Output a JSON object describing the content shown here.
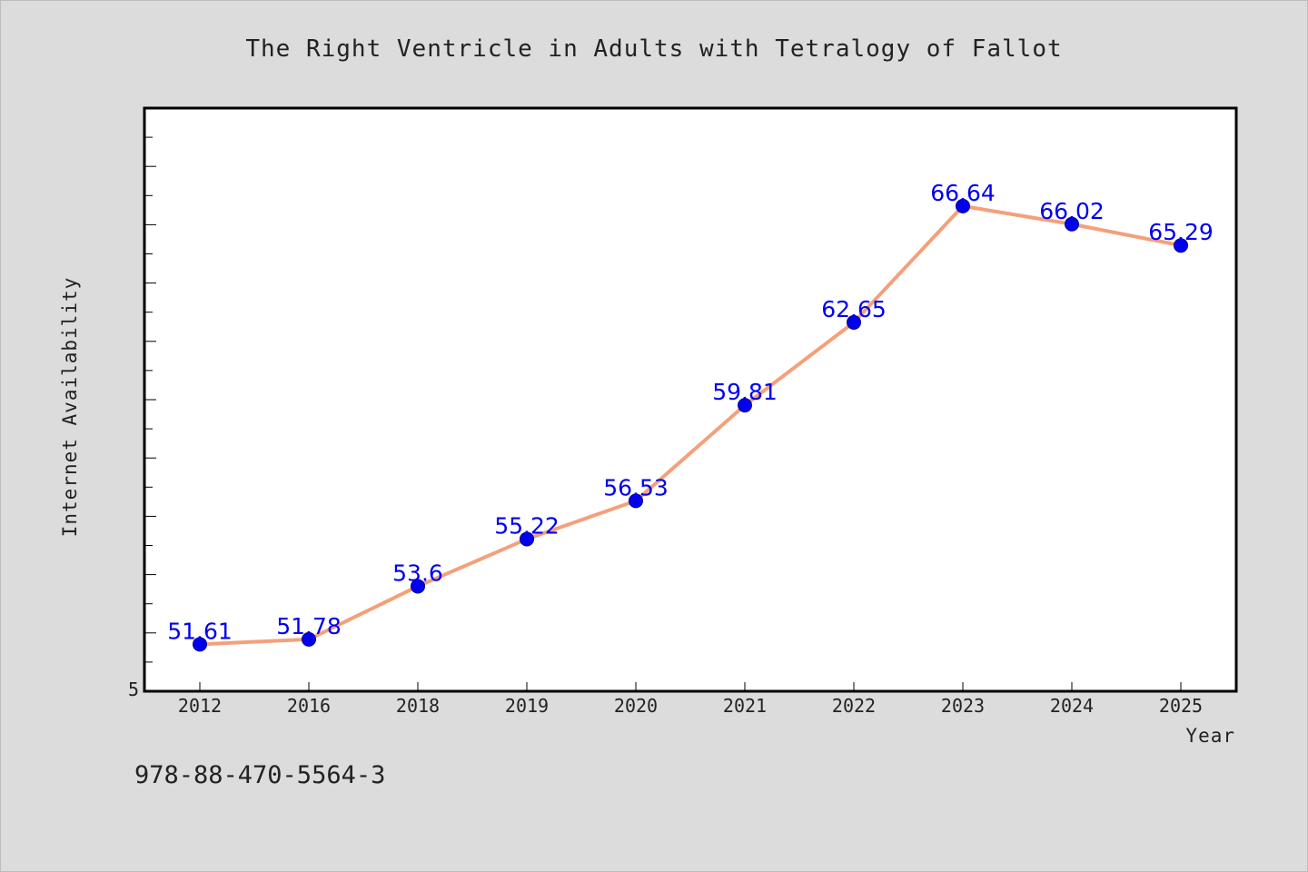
{
  "chart_data": {
    "type": "line",
    "title": "The Right Ventricle in Adults with Tetralogy of Fallot",
    "xlabel": "Year",
    "ylabel": "Internet Availability",
    "categories": [
      "2012",
      "2016",
      "2018",
      "2019",
      "2020",
      "2021",
      "2022",
      "2023",
      "2024",
      "2025"
    ],
    "series": [
      {
        "values": [
          51.61,
          51.78,
          53.6,
          55.22,
          56.53,
          59.81,
          62.65,
          66.64,
          66.02,
          65.29
        ],
        "data_labels": [
          "51.61",
          "51.78",
          "53.6",
          "55.22",
          "56.53",
          "59.81",
          "62.65",
          "66.64",
          "66.02",
          "65.29"
        ]
      }
    ],
    "ylim": [
      50,
      70
    ],
    "y_tick_labels": [
      "5"
    ],
    "grid": false,
    "legend": "none",
    "line_color": "#f4a07a",
    "marker_color": "#0000ee",
    "label_color": "#0000ee",
    "background_color": "#dcdcdc",
    "plot_background": "#ffffff"
  },
  "footer": {
    "isbn": "978-88-470-5564-3"
  }
}
